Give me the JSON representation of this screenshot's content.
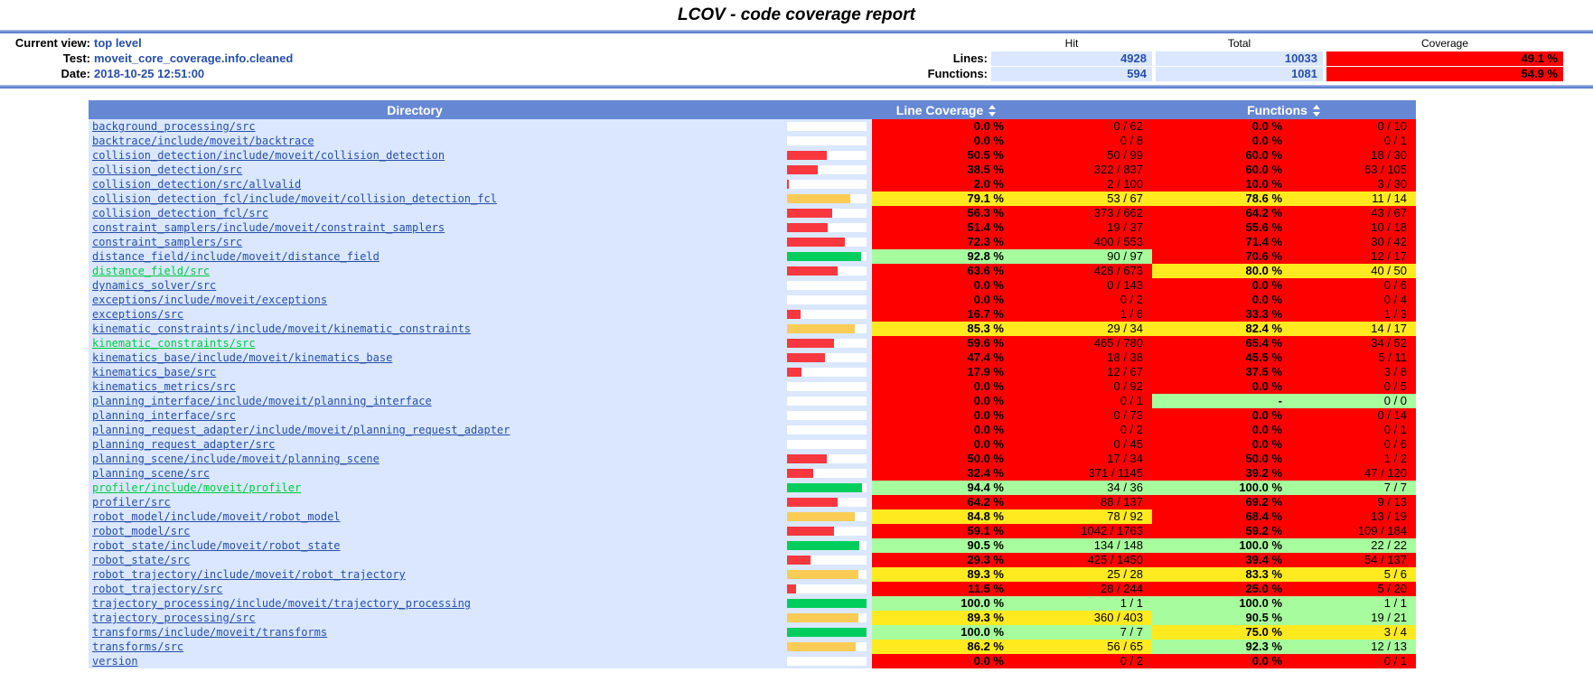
{
  "title": "LCOV - code coverage report",
  "colors": {
    "header_blue": "#6688D4",
    "cell_blue": "#DAE7FE",
    "link_blue": "#284FA8",
    "link_visited_green": "#00CB40",
    "coverage_low": "#FF0000",
    "coverage_med": "#FFEA20",
    "coverage_high": "#A7FC9D"
  },
  "summary": {
    "current_view_label": "Current view:",
    "current_view": "top level",
    "test_label": "Test:",
    "test": "moveit_core_coverage.info.cleaned",
    "date_label": "Date:",
    "date": "2018-10-25 12:51:00",
    "col_headers": {
      "hit": "Hit",
      "total": "Total",
      "coverage": "Coverage"
    },
    "rows": [
      {
        "label": "Lines:",
        "hit": "4928",
        "total": "10033",
        "coverage": "49.1 %",
        "level": "lo"
      },
      {
        "label": "Functions:",
        "hit": "594",
        "total": "1081",
        "coverage": "54.9 %",
        "level": "lo"
      }
    ]
  },
  "table": {
    "headers": {
      "directory": "Directory",
      "line_coverage": "Line Coverage",
      "functions": "Functions"
    },
    "sort_icons": {
      "line_coverage": "sort-updown",
      "functions": "sort-updown"
    },
    "rows": [
      {
        "path": "background_processing/src",
        "visited": false,
        "line": {
          "pct": "0.0 %",
          "ratio": "0 / 62",
          "level": "lo",
          "bar": 0
        },
        "fn": {
          "pct": "0.0 %",
          "ratio": "0 / 10",
          "level": "lo"
        }
      },
      {
        "path": "backtrace/include/moveit/backtrace",
        "visited": false,
        "line": {
          "pct": "0.0 %",
          "ratio": "0 / 8",
          "level": "lo",
          "bar": 0
        },
        "fn": {
          "pct": "0.0 %",
          "ratio": "0 / 1",
          "level": "lo"
        }
      },
      {
        "path": "collision_detection/include/moveit/collision_detection",
        "visited": false,
        "line": {
          "pct": "50.5 %",
          "ratio": "50 / 99",
          "level": "lo",
          "bar": 50.5
        },
        "fn": {
          "pct": "60.0 %",
          "ratio": "18 / 30",
          "level": "lo"
        }
      },
      {
        "path": "collision_detection/src",
        "visited": false,
        "line": {
          "pct": "38.5 %",
          "ratio": "322 / 837",
          "level": "lo",
          "bar": 38.5
        },
        "fn": {
          "pct": "60.0 %",
          "ratio": "63 / 105",
          "level": "lo"
        }
      },
      {
        "path": "collision_detection/src/allvalid",
        "visited": false,
        "line": {
          "pct": "2.0 %",
          "ratio": "2 / 100",
          "level": "lo",
          "bar": 2
        },
        "fn": {
          "pct": "10.0 %",
          "ratio": "3 / 30",
          "level": "lo"
        }
      },
      {
        "path": "collision_detection_fcl/include/moveit/collision_detection_fcl",
        "visited": false,
        "line": {
          "pct": "79.1 %",
          "ratio": "53 / 67",
          "level": "med",
          "bar": 79.1
        },
        "fn": {
          "pct": "78.6 %",
          "ratio": "11 / 14",
          "level": "med"
        }
      },
      {
        "path": "collision_detection_fcl/src",
        "visited": false,
        "line": {
          "pct": "56.3 %",
          "ratio": "373 / 662",
          "level": "lo",
          "bar": 56.3
        },
        "fn": {
          "pct": "64.2 %",
          "ratio": "43 / 67",
          "level": "lo"
        }
      },
      {
        "path": "constraint_samplers/include/moveit/constraint_samplers",
        "visited": false,
        "line": {
          "pct": "51.4 %",
          "ratio": "19 / 37",
          "level": "lo",
          "bar": 51.4
        },
        "fn": {
          "pct": "55.6 %",
          "ratio": "10 / 18",
          "level": "lo"
        }
      },
      {
        "path": "constraint_samplers/src",
        "visited": false,
        "line": {
          "pct": "72.3 %",
          "ratio": "400 / 553",
          "level": "lo",
          "bar": 72.3
        },
        "fn": {
          "pct": "71.4 %",
          "ratio": "30 / 42",
          "level": "lo"
        }
      },
      {
        "path": "distance_field/include/moveit/distance_field",
        "visited": false,
        "line": {
          "pct": "92.8 %",
          "ratio": "90 / 97",
          "level": "hi",
          "bar": 92.8
        },
        "fn": {
          "pct": "70.6 %",
          "ratio": "12 / 17",
          "level": "lo"
        }
      },
      {
        "path": "distance_field/src",
        "visited": true,
        "line": {
          "pct": "63.6 %",
          "ratio": "428 / 673",
          "level": "lo",
          "bar": 63.6
        },
        "fn": {
          "pct": "80.0 %",
          "ratio": "40 / 50",
          "level": "med"
        }
      },
      {
        "path": "dynamics_solver/src",
        "visited": false,
        "line": {
          "pct": "0.0 %",
          "ratio": "0 / 143",
          "level": "lo",
          "bar": 0
        },
        "fn": {
          "pct": "0.0 %",
          "ratio": "0 / 6",
          "level": "lo"
        }
      },
      {
        "path": "exceptions/include/moveit/exceptions",
        "visited": false,
        "line": {
          "pct": "0.0 %",
          "ratio": "0 / 2",
          "level": "lo",
          "bar": 0
        },
        "fn": {
          "pct": "0.0 %",
          "ratio": "0 / 4",
          "level": "lo"
        }
      },
      {
        "path": "exceptions/src",
        "visited": false,
        "line": {
          "pct": "16.7 %",
          "ratio": "1 / 6",
          "level": "lo",
          "bar": 16.7
        },
        "fn": {
          "pct": "33.3 %",
          "ratio": "1 / 3",
          "level": "lo"
        }
      },
      {
        "path": "kinematic_constraints/include/moveit/kinematic_constraints",
        "visited": false,
        "line": {
          "pct": "85.3 %",
          "ratio": "29 / 34",
          "level": "med",
          "bar": 85.3
        },
        "fn": {
          "pct": "82.4 %",
          "ratio": "14 / 17",
          "level": "med"
        }
      },
      {
        "path": "kinematic_constraints/src",
        "visited": true,
        "line": {
          "pct": "59.6 %",
          "ratio": "465 / 780",
          "level": "lo",
          "bar": 59.6
        },
        "fn": {
          "pct": "65.4 %",
          "ratio": "34 / 52",
          "level": "lo"
        }
      },
      {
        "path": "kinematics_base/include/moveit/kinematics_base",
        "visited": false,
        "line": {
          "pct": "47.4 %",
          "ratio": "18 / 38",
          "level": "lo",
          "bar": 47.4
        },
        "fn": {
          "pct": "45.5 %",
          "ratio": "5 / 11",
          "level": "lo"
        }
      },
      {
        "path": "kinematics_base/src",
        "visited": false,
        "line": {
          "pct": "17.9 %",
          "ratio": "12 / 67",
          "level": "lo",
          "bar": 17.9
        },
        "fn": {
          "pct": "37.5 %",
          "ratio": "3 / 8",
          "level": "lo"
        }
      },
      {
        "path": "kinematics_metrics/src",
        "visited": false,
        "line": {
          "pct": "0.0 %",
          "ratio": "0 / 92",
          "level": "lo",
          "bar": 0
        },
        "fn": {
          "pct": "0.0 %",
          "ratio": "0 / 5",
          "level": "lo"
        }
      },
      {
        "path": "planning_interface/include/moveit/planning_interface",
        "visited": false,
        "line": {
          "pct": "0.0 %",
          "ratio": "0 / 1",
          "level": "lo",
          "bar": 0
        },
        "fn": {
          "pct": "-",
          "ratio": "0 / 0",
          "level": "hi"
        }
      },
      {
        "path": "planning_interface/src",
        "visited": false,
        "line": {
          "pct": "0.0 %",
          "ratio": "0 / 73",
          "level": "lo",
          "bar": 0
        },
        "fn": {
          "pct": "0.0 %",
          "ratio": "0 / 14",
          "level": "lo"
        }
      },
      {
        "path": "planning_request_adapter/include/moveit/planning_request_adapter",
        "visited": false,
        "line": {
          "pct": "0.0 %",
          "ratio": "0 / 2",
          "level": "lo",
          "bar": 0
        },
        "fn": {
          "pct": "0.0 %",
          "ratio": "0 / 1",
          "level": "lo"
        }
      },
      {
        "path": "planning_request_adapter/src",
        "visited": false,
        "line": {
          "pct": "0.0 %",
          "ratio": "0 / 45",
          "level": "lo",
          "bar": 0
        },
        "fn": {
          "pct": "0.0 %",
          "ratio": "0 / 6",
          "level": "lo"
        }
      },
      {
        "path": "planning_scene/include/moveit/planning_scene",
        "visited": false,
        "line": {
          "pct": "50.0 %",
          "ratio": "17 / 34",
          "level": "lo",
          "bar": 50
        },
        "fn": {
          "pct": "50.0 %",
          "ratio": "1 / 2",
          "level": "lo"
        }
      },
      {
        "path": "planning_scene/src",
        "visited": false,
        "line": {
          "pct": "32.4 %",
          "ratio": "371 / 1145",
          "level": "lo",
          "bar": 32.4
        },
        "fn": {
          "pct": "39.2 %",
          "ratio": "47 / 120",
          "level": "lo"
        }
      },
      {
        "path": "profiler/include/moveit/profiler",
        "visited": true,
        "line": {
          "pct": "94.4 %",
          "ratio": "34 / 36",
          "level": "hi",
          "bar": 94.4
        },
        "fn": {
          "pct": "100.0 %",
          "ratio": "7 / 7",
          "level": "hi"
        }
      },
      {
        "path": "profiler/src",
        "visited": false,
        "line": {
          "pct": "64.2 %",
          "ratio": "88 / 137",
          "level": "lo",
          "bar": 64.2
        },
        "fn": {
          "pct": "69.2 %",
          "ratio": "9 / 13",
          "level": "lo"
        }
      },
      {
        "path": "robot_model/include/moveit/robot_model",
        "visited": false,
        "line": {
          "pct": "84.8 %",
          "ratio": "78 / 92",
          "level": "med",
          "bar": 84.8
        },
        "fn": {
          "pct": "68.4 %",
          "ratio": "13 / 19",
          "level": "lo"
        }
      },
      {
        "path": "robot_model/src",
        "visited": false,
        "line": {
          "pct": "59.1 %",
          "ratio": "1042 / 1763",
          "level": "lo",
          "bar": 59.1
        },
        "fn": {
          "pct": "59.2 %",
          "ratio": "109 / 184",
          "level": "lo"
        }
      },
      {
        "path": "robot_state/include/moveit/robot_state",
        "visited": false,
        "line": {
          "pct": "90.5 %",
          "ratio": "134 / 148",
          "level": "hi",
          "bar": 90.5
        },
        "fn": {
          "pct": "100.0 %",
          "ratio": "22 / 22",
          "level": "hi"
        }
      },
      {
        "path": "robot_state/src",
        "visited": false,
        "line": {
          "pct": "29.3 %",
          "ratio": "425 / 1450",
          "level": "lo",
          "bar": 29.3
        },
        "fn": {
          "pct": "39.4 %",
          "ratio": "54 / 137",
          "level": "lo"
        }
      },
      {
        "path": "robot_trajectory/include/moveit/robot_trajectory",
        "visited": false,
        "line": {
          "pct": "89.3 %",
          "ratio": "25 / 28",
          "level": "med",
          "bar": 89.3
        },
        "fn": {
          "pct": "83.3 %",
          "ratio": "5 / 6",
          "level": "med"
        }
      },
      {
        "path": "robot_trajectory/src",
        "visited": false,
        "line": {
          "pct": "11.5 %",
          "ratio": "28 / 244",
          "level": "lo",
          "bar": 11.5
        },
        "fn": {
          "pct": "25.0 %",
          "ratio": "5 / 20",
          "level": "lo"
        }
      },
      {
        "path": "trajectory_processing/include/moveit/trajectory_processing",
        "visited": false,
        "line": {
          "pct": "100.0 %",
          "ratio": "1 / 1",
          "level": "hi",
          "bar": 100
        },
        "fn": {
          "pct": "100.0 %",
          "ratio": "1 / 1",
          "level": "hi"
        }
      },
      {
        "path": "trajectory_processing/src",
        "visited": false,
        "line": {
          "pct": "89.3 %",
          "ratio": "360 / 403",
          "level": "med",
          "bar": 89.3
        },
        "fn": {
          "pct": "90.5 %",
          "ratio": "19 / 21",
          "level": "hi"
        }
      },
      {
        "path": "transforms/include/moveit/transforms",
        "visited": false,
        "line": {
          "pct": "100.0 %",
          "ratio": "7 / 7",
          "level": "hi",
          "bar": 100
        },
        "fn": {
          "pct": "75.0 %",
          "ratio": "3 / 4",
          "level": "med"
        }
      },
      {
        "path": "transforms/src",
        "visited": false,
        "line": {
          "pct": "86.2 %",
          "ratio": "56 / 65",
          "level": "med",
          "bar": 86.2
        },
        "fn": {
          "pct": "92.3 %",
          "ratio": "12 / 13",
          "level": "hi"
        }
      },
      {
        "path": "version",
        "visited": false,
        "line": {
          "pct": "0.0 %",
          "ratio": "0 / 2",
          "level": "lo",
          "bar": 0
        },
        "fn": {
          "pct": "0.0 %",
          "ratio": "0 / 1",
          "level": "lo"
        }
      }
    ]
  }
}
